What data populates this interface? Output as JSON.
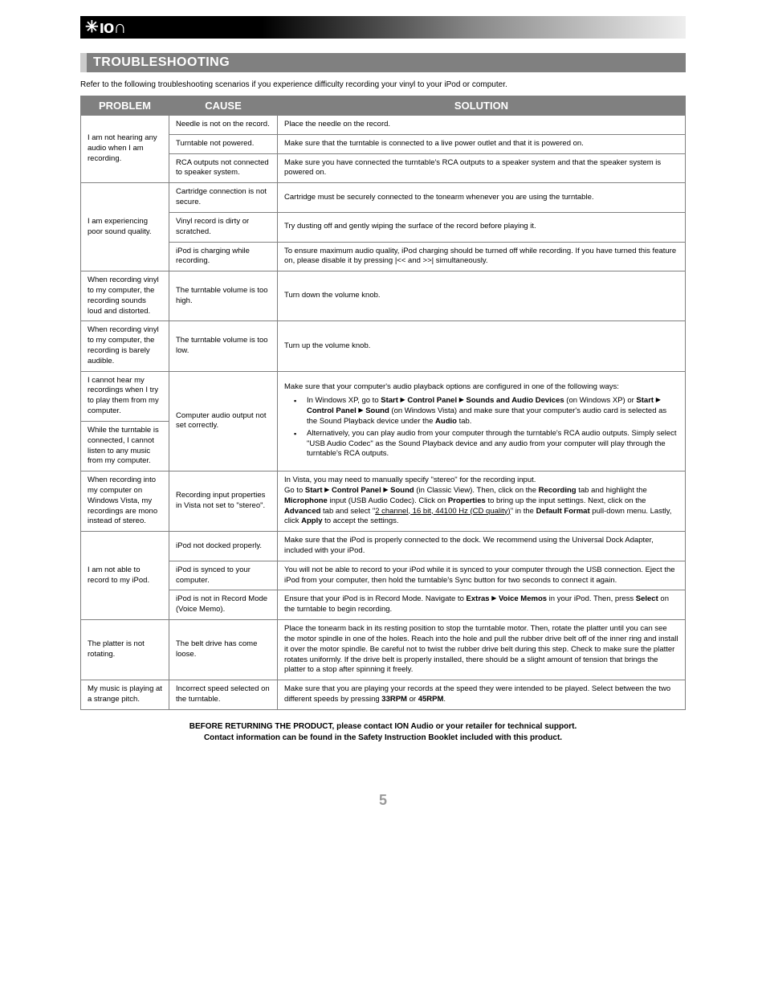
{
  "logo": "ıo∩",
  "section_heading": "TROUBLESHOOTING",
  "intro": "Refer to the following troubleshooting scenarios if you experience difficulty recording your vinyl to your iPod or computer.",
  "headers": {
    "problem": "PROBLEM",
    "cause": "CAUSE",
    "solution": "SOLUTION"
  },
  "rows": {
    "r1": {
      "problem": "I am not hearing any audio when I am recording.",
      "c1": {
        "cause": "Needle is not on the record.",
        "solution": "Place the needle on the record."
      },
      "c2": {
        "cause": "Turntable not powered.",
        "solution": "Make sure that the turntable is connected to a live power outlet and that it is powered on."
      },
      "c3": {
        "cause": "RCA outputs not connected to speaker system.",
        "solution": "Make sure you have connected the turntable's RCA outputs to a speaker system and that the speaker system is powered on."
      }
    },
    "r2": {
      "problem": "I am experiencing poor sound quality.",
      "c1": {
        "cause": "Cartridge connection is not secure.",
        "solution": "Cartridge must be securely connected to the tonearm whenever you are using the turntable."
      },
      "c2": {
        "cause": "Vinyl record is dirty or scratched.",
        "solution": "Try dusting off and gently wiping the surface of the record before playing it."
      },
      "c3": {
        "cause": "iPod is charging while recording.",
        "solution": "To ensure maximum audio quality, iPod charging should be turned off while recording.  If you have turned this feature on, please disable it by pressing |<< and >>| simultaneously."
      }
    },
    "r3": {
      "problem": "When recording vinyl to my computer, the recording sounds loud and distorted.",
      "cause": "The turntable volume is too high.",
      "solution": "Turn down the volume knob."
    },
    "r4": {
      "problem": "When recording vinyl to my computer, the recording is barely audible.",
      "cause": "The turntable volume is too low.",
      "solution": "Turn up the volume knob."
    },
    "r5": {
      "p1": "I cannot hear my recordings when I try to play them from my computer.",
      "p2": "While the turntable is connected, I cannot listen to any music from my computer.",
      "cause": "Computer audio output not set correctly.",
      "sol_intro": "Make sure that your computer's audio playback options are configured in one of the following ways:",
      "b1_a": "In Windows XP, go to ",
      "b1_b": "Start ",
      "b1_c": " Control Panel ",
      "b1_d": " Sounds and Audio Devices",
      "b1_e": " (on Windows XP) or ",
      "b1_f": "Start ",
      "b1_g": " Control Panel ",
      "b1_h": " Sound",
      "b1_i": " (on Windows Vista) and make sure that your computer's audio card is selected as the Sound Playback device under the ",
      "b1_j": "Audio",
      "b1_k": " tab.",
      "b2": "Alternatively, you can play audio from your computer through the turntable's RCA audio outputs. Simply select \"USB Audio Codec\" as the Sound Playback device and any audio from your computer will play through the turntable's RCA outputs."
    },
    "r6": {
      "problem": "When recording into my computer on Windows Vista, my recordings are mono instead of stereo.",
      "cause": "Recording input properties in Vista not set to \"stereo\".",
      "s1": "In Vista, you may need to manually specify \"stereo\" for the recording input.",
      "s2a": "Go to ",
      "s2b": "Start ",
      "s2c": " Control Panel ",
      "s2d": " Sound",
      "s2e": " (in Classic View).  Then, click on the ",
      "s2f": "Recording",
      "s2g": " tab and highlight the ",
      "s2h": "Microphone",
      "s2i": " input (USB Audio Codec).  Click on ",
      "s2j": "Properties",
      "s2k": " to bring up the input settings.  Next, click on the ",
      "s2l": "Advanced",
      "s2m": " tab and select \"",
      "s2n": "2 channel, 16 bit, 44100 Hz (CD quality)",
      "s2o": "\" in the ",
      "s2p": "Default Format",
      "s2q": " pull-down menu.  Lastly, click ",
      "s2r": "Apply",
      "s2s": " to accept the settings."
    },
    "r7": {
      "problem": "I am not able to record to my iPod.",
      "c1": {
        "cause": "iPod not docked properly.",
        "solution": "Make sure that the iPod is properly connected to the dock.  We recommend using the Universal Dock Adapter, included with your iPod."
      },
      "c2": {
        "cause": "iPod is synced to your computer.",
        "solution": "You will not be able to record to your iPod while it is synced to your computer through the USB connection.  Eject the iPod from your computer, then hold the turntable's Sync button for two seconds to connect it again."
      },
      "c3": {
        "cause": "iPod is not in Record Mode (Voice Memo).",
        "s1": "Ensure that your iPod is in Record Mode.  Navigate to ",
        "s2": "Extras ",
        "s3": " Voice Memos",
        "s4": " in your iPod.  Then, press ",
        "s5": "Select",
        "s6": " on the turntable to begin recording."
      }
    },
    "r8": {
      "problem": "The platter is not rotating.",
      "cause": "The belt drive has come loose.",
      "solution": "Place the tonearm back in its resting position to stop the turntable motor.  Then, rotate the platter until you can see the motor spindle in one of the holes.  Reach into the hole and pull the rubber drive belt off of the inner ring and install it over the motor spindle.  Be careful not to twist the rubber drive belt during this step.  Check to make sure the platter rotates uniformly.  If the drive belt is properly installed, there should be a slight amount of tension that brings the platter to a stop after spinning it freely."
    },
    "r9": {
      "problem": "My music is playing at a strange pitch.",
      "cause": "Incorrect speed selected on the turntable.",
      "s1": "Make sure that you are playing your records at the speed they were intended to be played.  Select between the two different speeds by pressing ",
      "s2": "33RPM",
      "s3": " or ",
      "s4": "45RPM",
      "s5": "."
    }
  },
  "footer": {
    "l1": "BEFORE RETURNING THE PRODUCT, please contact ION Audio or your retailer for technical support.",
    "l2": "Contact information can be found in the Safety Instruction Booklet included with this product."
  },
  "page_number": "5"
}
